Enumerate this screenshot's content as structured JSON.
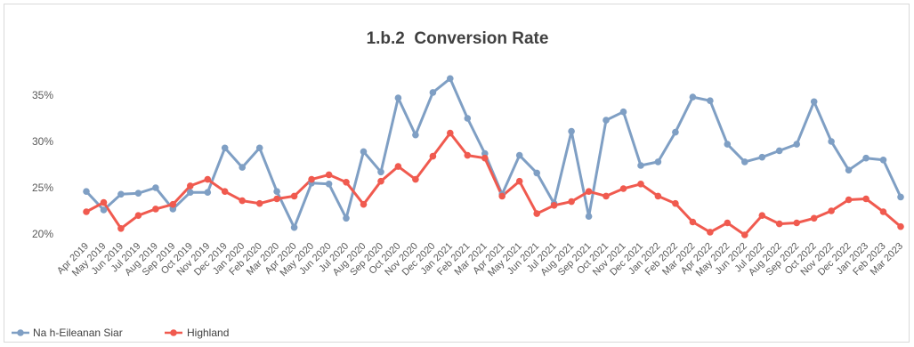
{
  "chart_data": {
    "type": "line",
    "title": "1.b.2  Conversion Rate",
    "xlabel": "",
    "ylabel": "",
    "ylim": [
      18.5,
      38
    ],
    "yticks": [
      "20%",
      "25%",
      "30%",
      "35%"
    ],
    "grid": false,
    "legend_position": "bottom-left",
    "categories": [
      "Apr 2019",
      "May 2019",
      "Jun 2019",
      "Jul 2019",
      "Aug 2019",
      "Sep 2019",
      "Oct 2019",
      "Nov 2019",
      "Dec 2019",
      "Jan 2020",
      "Feb 2020",
      "Mar 2020",
      "Apr 2020",
      "May 2020",
      "Jun 2020",
      "Jul 2020",
      "Aug 2020",
      "Sep 2020",
      "Oct 2020",
      "Nov 2020",
      "Dec 2020",
      "Jan 2021",
      "Feb 2021",
      "Mar 2021",
      "Apr 2021",
      "May 2021",
      "Jun 2021",
      "Jul 2021",
      "Aug 2021",
      "Sep 2021",
      "Oct 2021",
      "Nov 2021",
      "Dec 2021",
      "Jan 2022",
      "Feb 2022",
      "Mar 2022",
      "Apr 2022",
      "May 2022",
      "Jun 2022",
      "Jul 2022",
      "Aug 2022",
      "Sep 2022",
      "Oct 2022",
      "Nov 2022",
      "Dec 2022",
      "Jan 2023",
      "Feb 2023",
      "Mar 2023"
    ],
    "series": [
      {
        "name": "Na h-Eileanan Siar",
        "color": "#7f9fc4",
        "values": [
          24.6,
          22.6,
          24.3,
          24.4,
          25.0,
          22.7,
          24.5,
          24.5,
          29.3,
          27.2,
          29.3,
          24.6,
          20.7,
          25.5,
          25.4,
          21.7,
          28.9,
          26.7,
          34.7,
          30.7,
          35.3,
          36.8,
          32.5,
          28.7,
          24.3,
          28.5,
          26.6,
          23.3,
          31.1,
          21.9,
          32.3,
          33.2,
          27.4,
          27.8,
          31.0,
          34.8,
          34.4,
          29.7,
          27.8,
          28.3,
          29.0,
          29.7,
          34.3,
          30.0,
          26.9,
          28.2,
          28.0,
          24.0
        ]
      },
      {
        "name": "Highland",
        "color": "#f05a4f",
        "values": [
          22.4,
          23.4,
          20.6,
          22.0,
          22.7,
          23.2,
          25.2,
          25.9,
          24.6,
          23.6,
          23.3,
          23.8,
          24.1,
          25.9,
          26.4,
          25.6,
          23.2,
          25.7,
          27.3,
          25.9,
          28.4,
          30.9,
          28.5,
          28.2,
          24.1,
          25.7,
          22.2,
          23.1,
          23.5,
          24.6,
          24.1,
          24.9,
          25.4,
          24.1,
          23.3,
          21.3,
          20.2,
          21.2,
          19.9,
          22.0,
          21.1,
          21.2,
          21.7,
          22.5,
          23.7,
          23.8,
          22.4,
          20.8
        ]
      }
    ]
  }
}
